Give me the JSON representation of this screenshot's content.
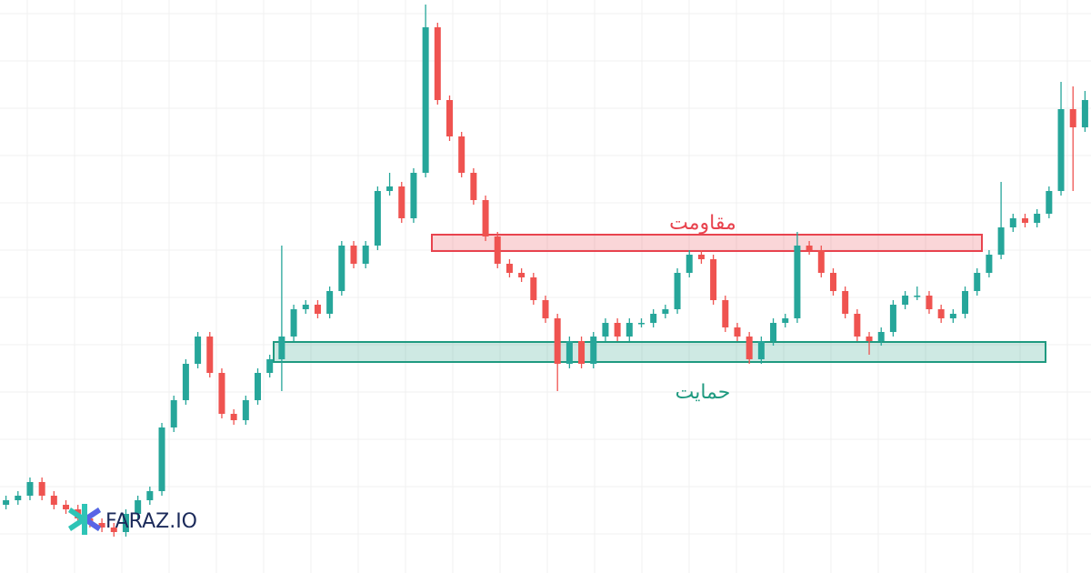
{
  "chart_data": {
    "type": "candlestick",
    "up_color": "#26a69a",
    "down_color": "#ef5350",
    "open": [
      75,
      80,
      85,
      100,
      85,
      75,
      70,
      60,
      55,
      50,
      45,
      65,
      80,
      90,
      160,
      190,
      230,
      260,
      220,
      175,
      168,
      190,
      220,
      235,
      260,
      290,
      295,
      285,
      310,
      360,
      340,
      360,
      420,
      425,
      390,
      440,
      600,
      520,
      480,
      440,
      410,
      370,
      340,
      330,
      325,
      300,
      280,
      230,
      255,
      230,
      260,
      275,
      260,
      275,
      275,
      285,
      290,
      330,
      350,
      345,
      300,
      270,
      260,
      235,
      255,
      275,
      280,
      360,
      355,
      330,
      310,
      285,
      260,
      255,
      265,
      295,
      305,
      305,
      290,
      280,
      285,
      310,
      330,
      350,
      380,
      390,
      385,
      395,
      420,
      510,
      490
    ],
    "high": [
      85,
      90,
      105,
      105,
      90,
      80,
      75,
      65,
      60,
      55,
      70,
      85,
      95,
      165,
      195,
      235,
      265,
      265,
      225,
      180,
      195,
      225,
      240,
      360,
      295,
      300,
      300,
      315,
      365,
      365,
      365,
      425,
      440,
      430,
      445,
      625,
      605,
      525,
      485,
      445,
      415,
      375,
      345,
      335,
      330,
      305,
      285,
      260,
      260,
      265,
      280,
      280,
      280,
      280,
      290,
      295,
      335,
      355,
      355,
      350,
      305,
      275,
      265,
      260,
      280,
      285,
      375,
      365,
      360,
      335,
      315,
      290,
      265,
      270,
      300,
      310,
      315,
      310,
      295,
      290,
      315,
      335,
      355,
      430,
      395,
      395,
      400,
      425,
      540,
      535,
      530
    ],
    "low": [
      70,
      75,
      80,
      80,
      70,
      65,
      55,
      50,
      45,
      40,
      40,
      60,
      75,
      85,
      155,
      185,
      225,
      215,
      170,
      163,
      163,
      185,
      215,
      200,
      255,
      285,
      280,
      280,
      305,
      335,
      335,
      355,
      415,
      385,
      385,
      435,
      515,
      475,
      435,
      405,
      365,
      335,
      325,
      320,
      295,
      275,
      200,
      225,
      225,
      225,
      255,
      255,
      255,
      270,
      270,
      280,
      285,
      325,
      340,
      295,
      265,
      255,
      230,
      230,
      250,
      270,
      275,
      350,
      325,
      305,
      280,
      255,
      240,
      250,
      260,
      290,
      300,
      285,
      275,
      275,
      280,
      305,
      325,
      345,
      375,
      380,
      380,
      390,
      415,
      420,
      485
    ],
    "close": [
      80,
      85,
      100,
      85,
      75,
      70,
      60,
      55,
      50,
      45,
      65,
      80,
      90,
      160,
      190,
      230,
      260,
      220,
      175,
      168,
      190,
      220,
      235,
      260,
      290,
      295,
      285,
      310,
      360,
      340,
      360,
      420,
      425,
      390,
      440,
      600,
      520,
      480,
      440,
      410,
      370,
      340,
      330,
      325,
      300,
      280,
      230,
      255,
      230,
      260,
      275,
      260,
      275,
      275,
      285,
      290,
      330,
      350,
      345,
      300,
      270,
      260,
      235,
      255,
      275,
      280,
      360,
      355,
      330,
      310,
      285,
      260,
      255,
      265,
      295,
      305,
      305,
      290,
      280,
      285,
      310,
      330,
      350,
      380,
      390,
      385,
      395,
      420,
      510,
      490,
      520
    ],
    "zones": [
      {
        "label": "مقاومت",
        "low": 354,
        "high": 372,
        "color": "#e8434e"
      },
      {
        "label": "حمایت",
        "low": 232,
        "high": 254,
        "color": "#1f9a80"
      }
    ],
    "logo": "FARAZ.IO"
  }
}
